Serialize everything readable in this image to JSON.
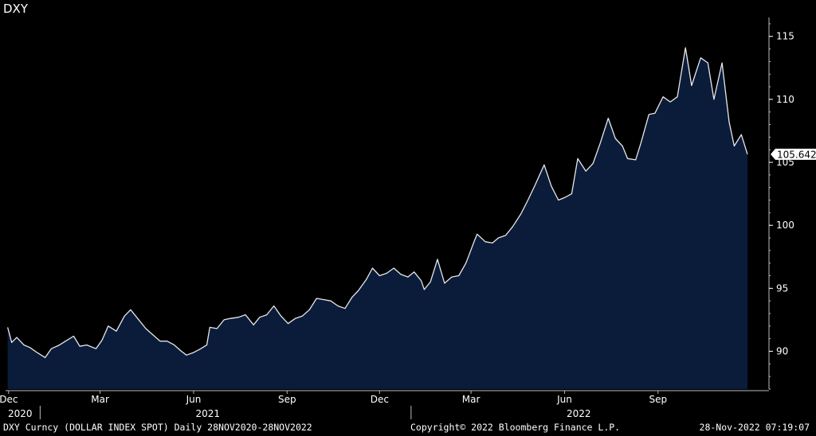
{
  "title": "DXY",
  "footer": {
    "left": "DXY Curncy (DOLLAR INDEX SPOT)  Daily 28NOV2020-28NOV2022",
    "middle": "Copyright© 2022 Bloomberg Finance L.P.",
    "right": "28-Nov-2022 07:19:07"
  },
  "colors": {
    "area_fill": "#0b1c3b",
    "line": "#e8e8e8",
    "background": "#000000",
    "axis": "#bbbbbb"
  },
  "chart_data": {
    "type": "area",
    "title": "DXY",
    "last_value_label": "105.642",
    "x_axis": {
      "range": [
        "2020-11-28",
        "2022-11-28"
      ],
      "tick_labels": [
        {
          "label": "Dec",
          "date": "2020-12-01"
        },
        {
          "label": "Mar",
          "date": "2021-03-01"
        },
        {
          "label": "Jun",
          "date": "2021-06-01"
        },
        {
          "label": "Sep",
          "date": "2021-09-01"
        },
        {
          "label": "Dec",
          "date": "2021-12-01"
        },
        {
          "label": "Mar",
          "date": "2022-03-01"
        },
        {
          "label": "Jun",
          "date": "2022-06-01"
        },
        {
          "label": "Sep",
          "date": "2022-09-01"
        }
      ],
      "year_labels": [
        {
          "label": "2020",
          "date": "2020-12-01"
        },
        {
          "label": "2021",
          "date": "2021-06-15"
        },
        {
          "label": "2022",
          "date": "2022-06-15"
        }
      ],
      "year_dividers": [
        "2021-01-01",
        "2022-01-01"
      ]
    },
    "y_axis": {
      "min": 87,
      "max": 116.5,
      "ticks": [
        90,
        95,
        100,
        105,
        110,
        115
      ],
      "minor_step": 1
    },
    "grid": false,
    "series": [
      {
        "points": [
          [
            "2020-11-30",
            91.9
          ],
          [
            "2020-12-04",
            90.7
          ],
          [
            "2020-12-09",
            91.1
          ],
          [
            "2020-12-16",
            90.5
          ],
          [
            "2020-12-22",
            90.3
          ],
          [
            "2020-12-29",
            89.9
          ],
          [
            "2021-01-06",
            89.5
          ],
          [
            "2021-01-12",
            90.2
          ],
          [
            "2021-01-20",
            90.5
          ],
          [
            "2021-01-26",
            90.8
          ],
          [
            "2021-02-03",
            91.2
          ],
          [
            "2021-02-09",
            90.4
          ],
          [
            "2021-02-16",
            90.5
          ],
          [
            "2021-02-25",
            90.2
          ],
          [
            "2021-03-03",
            90.9
          ],
          [
            "2021-03-09",
            92.0
          ],
          [
            "2021-03-17",
            91.6
          ],
          [
            "2021-03-25",
            92.8
          ],
          [
            "2021-03-31",
            93.3
          ],
          [
            "2021-04-07",
            92.6
          ],
          [
            "2021-04-15",
            91.8
          ],
          [
            "2021-04-22",
            91.3
          ],
          [
            "2021-04-29",
            90.8
          ],
          [
            "2021-05-06",
            90.8
          ],
          [
            "2021-05-13",
            90.5
          ],
          [
            "2021-05-20",
            90.0
          ],
          [
            "2021-05-25",
            89.7
          ],
          [
            "2021-06-01",
            89.9
          ],
          [
            "2021-06-08",
            90.2
          ],
          [
            "2021-06-14",
            90.5
          ],
          [
            "2021-06-17",
            91.9
          ],
          [
            "2021-06-24",
            91.8
          ],
          [
            "2021-07-01",
            92.5
          ],
          [
            "2021-07-07",
            92.6
          ],
          [
            "2021-07-15",
            92.7
          ],
          [
            "2021-07-22",
            92.9
          ],
          [
            "2021-07-30",
            92.1
          ],
          [
            "2021-08-05",
            92.7
          ],
          [
            "2021-08-12",
            92.9
          ],
          [
            "2021-08-19",
            93.6
          ],
          [
            "2021-08-26",
            92.8
          ],
          [
            "2021-09-02",
            92.2
          ],
          [
            "2021-09-09",
            92.6
          ],
          [
            "2021-09-16",
            92.8
          ],
          [
            "2021-09-23",
            93.3
          ],
          [
            "2021-09-30",
            94.2
          ],
          [
            "2021-10-07",
            94.1
          ],
          [
            "2021-10-14",
            94.0
          ],
          [
            "2021-10-21",
            93.6
          ],
          [
            "2021-10-28",
            93.4
          ],
          [
            "2021-11-04",
            94.3
          ],
          [
            "2021-11-10",
            94.8
          ],
          [
            "2021-11-18",
            95.7
          ],
          [
            "2021-11-24",
            96.6
          ],
          [
            "2021-12-01",
            96.0
          ],
          [
            "2021-12-08",
            96.2
          ],
          [
            "2021-12-15",
            96.6
          ],
          [
            "2021-12-22",
            96.1
          ],
          [
            "2021-12-29",
            95.9
          ],
          [
            "2022-01-04",
            96.3
          ],
          [
            "2022-01-11",
            95.6
          ],
          [
            "2022-01-14",
            94.9
          ],
          [
            "2022-01-20",
            95.5
          ],
          [
            "2022-01-27",
            97.3
          ],
          [
            "2022-02-03",
            95.4
          ],
          [
            "2022-02-10",
            95.9
          ],
          [
            "2022-02-17",
            96.0
          ],
          [
            "2022-02-24",
            97.0
          ],
          [
            "2022-03-04",
            98.7
          ],
          [
            "2022-03-07",
            99.3
          ],
          [
            "2022-03-15",
            98.7
          ],
          [
            "2022-03-22",
            98.6
          ],
          [
            "2022-03-28",
            99.0
          ],
          [
            "2022-04-04",
            99.2
          ],
          [
            "2022-04-11",
            99.9
          ],
          [
            "2022-04-19",
            100.9
          ],
          [
            "2022-04-26",
            102.0
          ],
          [
            "2022-05-03",
            103.2
          ],
          [
            "2022-05-12",
            104.8
          ],
          [
            "2022-05-19",
            103.1
          ],
          [
            "2022-05-26",
            102.0
          ],
          [
            "2022-06-01",
            102.2
          ],
          [
            "2022-06-08",
            102.5
          ],
          [
            "2022-06-14",
            105.3
          ],
          [
            "2022-06-22",
            104.3
          ],
          [
            "2022-06-29",
            104.9
          ],
          [
            "2022-07-06",
            106.5
          ],
          [
            "2022-07-14",
            108.5
          ],
          [
            "2022-07-21",
            106.9
          ],
          [
            "2022-07-28",
            106.3
          ],
          [
            "2022-08-02",
            105.3
          ],
          [
            "2022-08-10",
            105.2
          ],
          [
            "2022-08-15",
            106.5
          ],
          [
            "2022-08-23",
            108.8
          ],
          [
            "2022-08-29",
            108.9
          ],
          [
            "2022-09-06",
            110.2
          ],
          [
            "2022-09-13",
            109.8
          ],
          [
            "2022-09-20",
            110.2
          ],
          [
            "2022-09-28",
            114.1
          ],
          [
            "2022-10-04",
            111.1
          ],
          [
            "2022-10-13",
            113.3
          ],
          [
            "2022-10-20",
            112.9
          ],
          [
            "2022-10-26",
            110.0
          ],
          [
            "2022-11-03",
            112.9
          ],
          [
            "2022-11-10",
            108.2
          ],
          [
            "2022-11-15",
            106.3
          ],
          [
            "2022-11-22",
            107.2
          ],
          [
            "2022-11-28",
            105.642
          ]
        ]
      }
    ]
  }
}
